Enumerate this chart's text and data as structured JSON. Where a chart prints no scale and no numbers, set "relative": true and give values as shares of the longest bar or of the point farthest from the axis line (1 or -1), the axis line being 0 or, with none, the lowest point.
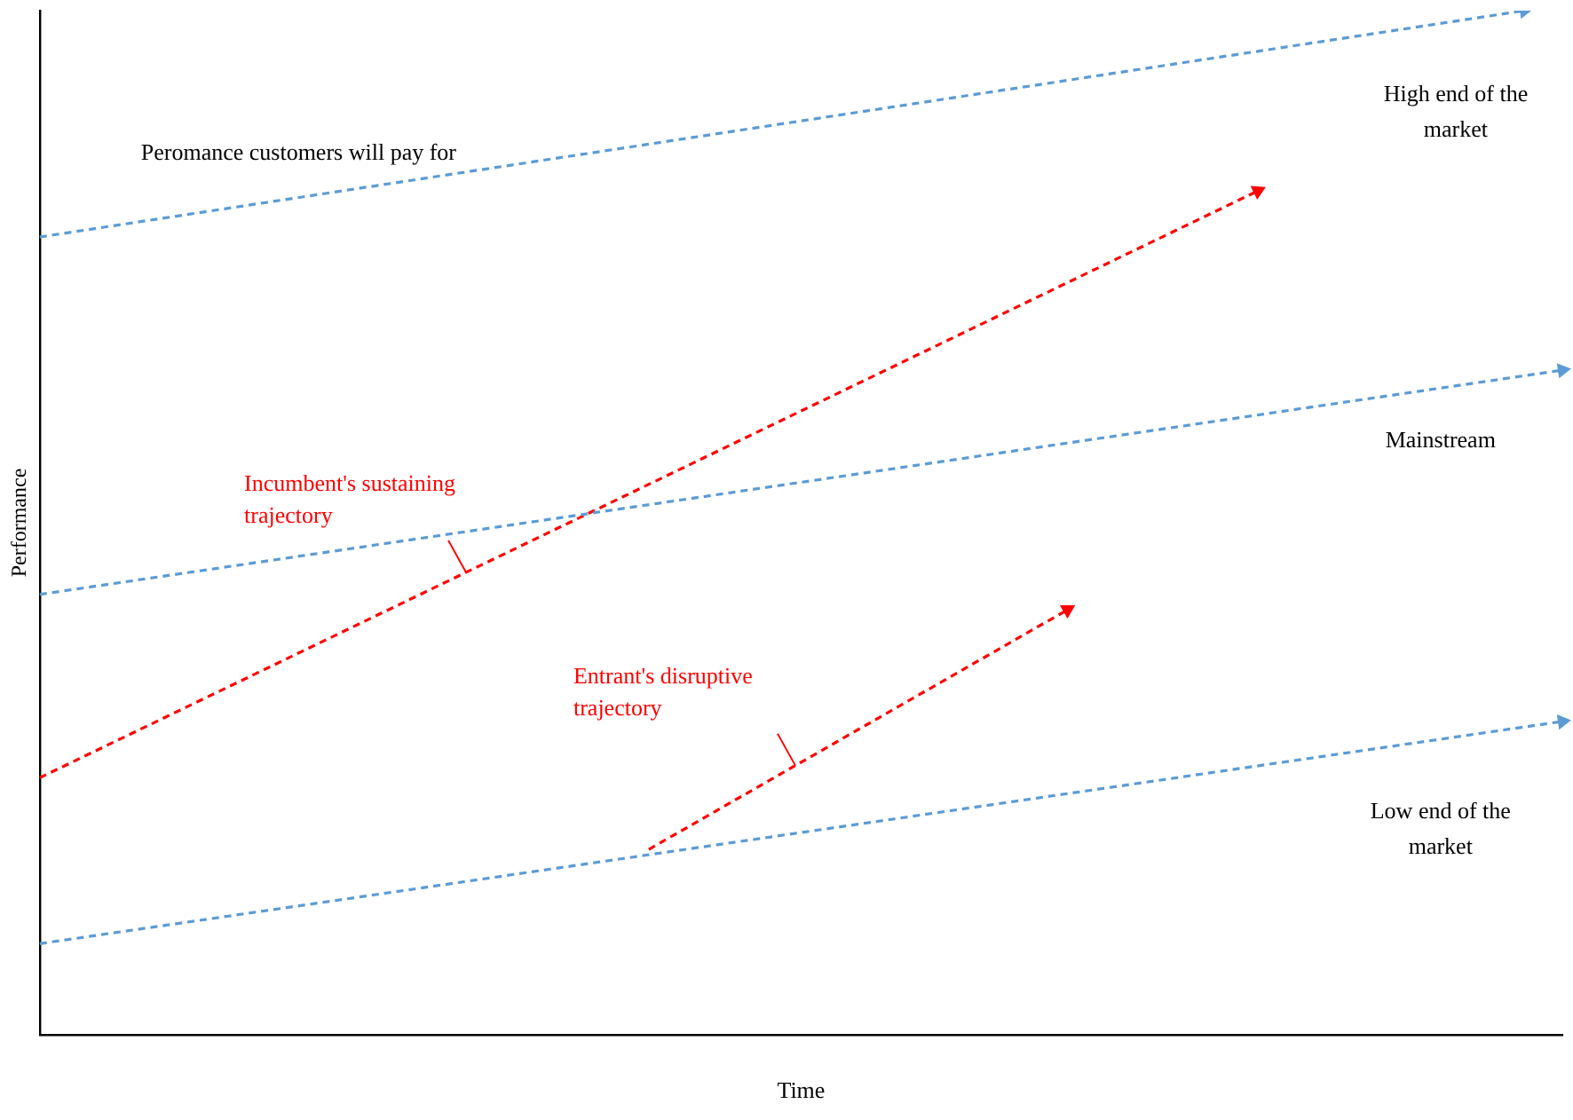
{
  "chart_data": {
    "type": "line",
    "relative": true,
    "xlabel": "Time",
    "ylabel": "Performance",
    "line_style": "dashed",
    "legend": false,
    "categories": [
      null,
      null,
      null,
      null,
      null,
      null,
      null,
      null,
      null,
      null,
      null,
      null,
      null,
      null,
      null,
      null,
      null,
      null,
      null,
      null,
      null,
      null,
      null,
      null,
      null,
      null,
      null,
      null,
      null,
      null,
      null,
      null,
      null,
      null,
      null,
      null,
      null,
      null,
      null,
      null,
      null
    ],
    "series": [
      {
        "color": "#5b9bd5",
        "values": [
          0.779,
          null,
          null,
          null,
          null,
          null,
          null,
          null,
          null,
          null,
          null,
          null,
          null,
          null,
          null,
          null,
          null,
          null,
          null,
          null,
          null,
          null,
          null,
          null,
          null,
          null,
          null,
          null,
          null,
          null,
          null,
          null,
          null,
          null,
          null,
          null,
          null,
          null,
          null,
          1.0,
          null
        ]
      },
      {
        "color": "#5b9bd5",
        "values": [
          0.43,
          null,
          null,
          null,
          null,
          null,
          null,
          null,
          null,
          null,
          null,
          null,
          null,
          null,
          null,
          null,
          null,
          null,
          null,
          null,
          null,
          null,
          null,
          null,
          null,
          null,
          null,
          null,
          null,
          null,
          null,
          null,
          null,
          null,
          null,
          null,
          null,
          null,
          null,
          null,
          0.649
        ]
      },
      {
        "color": "#5b9bd5",
        "values": [
          0.089,
          null,
          null,
          null,
          null,
          null,
          null,
          null,
          null,
          null,
          null,
          null,
          null,
          null,
          null,
          null,
          null,
          null,
          null,
          null,
          null,
          null,
          null,
          null,
          null,
          null,
          null,
          null,
          null,
          null,
          null,
          null,
          null,
          null,
          null,
          null,
          null,
          null,
          null,
          null,
          0.306
        ]
      },
      {
        "name": "Incumbent's sustaining trajectory",
        "color": "#ff0000",
        "values": [
          0.251,
          null,
          null,
          null,
          null,
          null,
          null,
          null,
          null,
          null,
          null,
          null,
          null,
          null,
          null,
          null,
          null,
          null,
          null,
          null,
          null,
          null,
          null,
          null,
          null,
          null,
          null,
          null,
          null,
          null,
          null,
          null,
          0.824,
          null,
          null,
          null,
          null,
          null,
          null,
          null,
          null
        ]
      },
      {
        "name": "Entrant's disruptive trajectory",
        "color": "#ff0000",
        "values": [
          null,
          null,
          null,
          null,
          null,
          null,
          null,
          null,
          null,
          null,
          null,
          null,
          null,
          null,
          null,
          null,
          0.181,
          null,
          null,
          null,
          null,
          null,
          null,
          null,
          null,
          null,
          null,
          0.415,
          null,
          null,
          null,
          null,
          null,
          null,
          null,
          null,
          null,
          null,
          null,
          null,
          null
        ]
      }
    ],
    "annotations": [
      "Peromance customers will pay for",
      "High end of the market",
      "Mainstream",
      "Low end of the market"
    ]
  }
}
